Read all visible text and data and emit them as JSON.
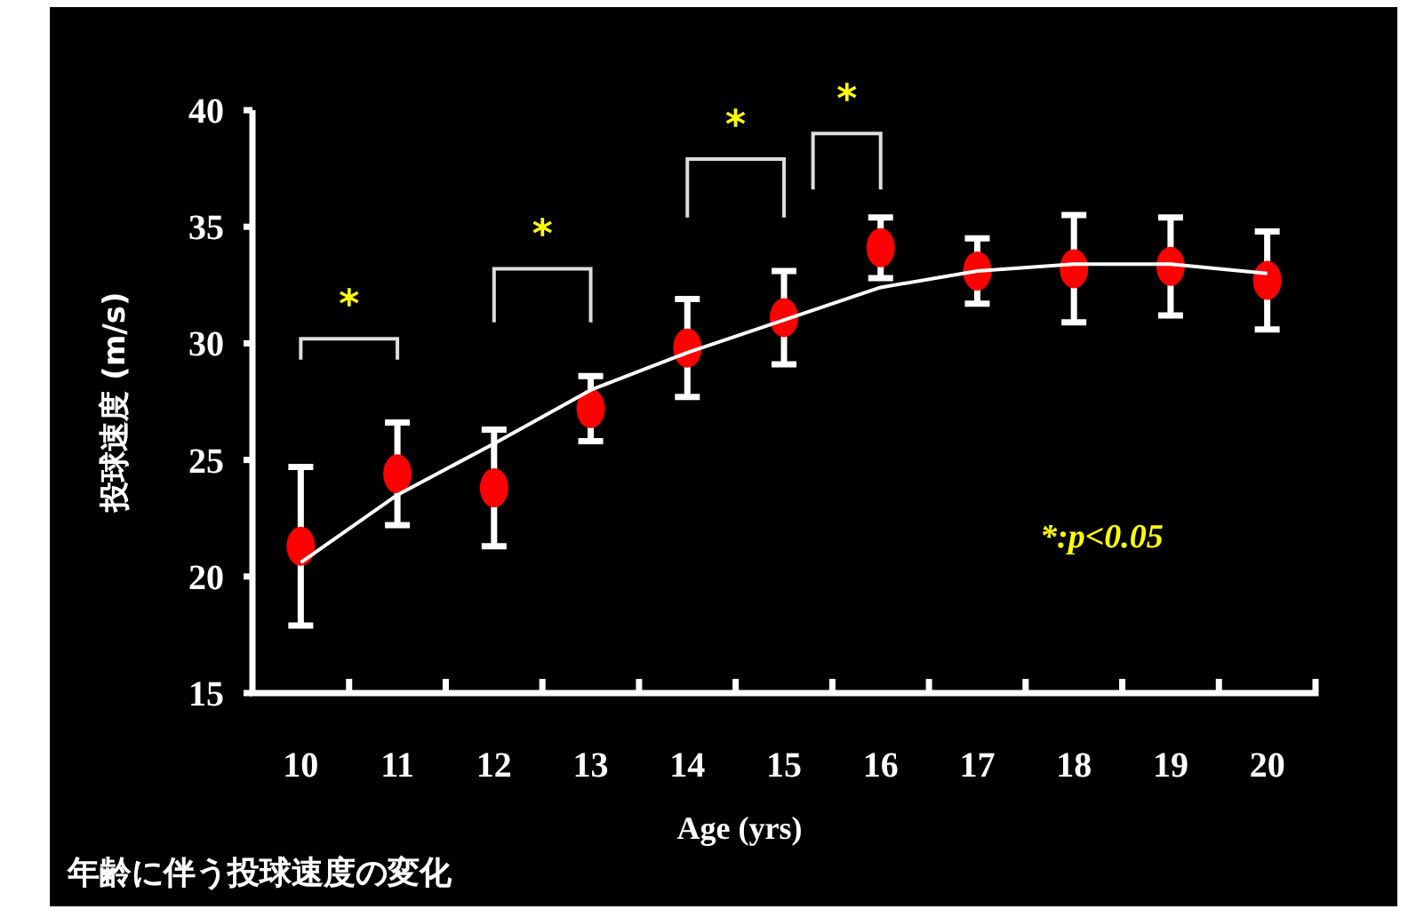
{
  "chart_data": {
    "type": "scatter",
    "title": "年齢に伴う投球速度の変化",
    "xlabel": "Age (yrs)",
    "ylabel": "投球速度 (m/s)",
    "categories": [
      "10",
      "11",
      "12",
      "13",
      "14",
      "15",
      "16",
      "17",
      "18",
      "19",
      "20"
    ],
    "ylim": [
      15,
      40
    ],
    "yticks": [
      15,
      20,
      25,
      30,
      35,
      40
    ],
    "series": [
      {
        "marker": "circle",
        "color": "#ff0000",
        "values": [
          21.3,
          24.4,
          23.8,
          27.2,
          29.8,
          31.1,
          34.1,
          33.1,
          33.2,
          33.3,
          32.7
        ],
        "errors": [
          3.4,
          2.2,
          2.5,
          1.4,
          2.1,
          2.0,
          1.3,
          1.4,
          2.3,
          2.1,
          2.1
        ]
      },
      {
        "type": "line",
        "color": "#ffffff",
        "line_style": "solid",
        "values": [
          20.6,
          23.5,
          25.7,
          28.0,
          29.6,
          31.0,
          32.4,
          33.1,
          33.4,
          33.4,
          33.0
        ]
      }
    ],
    "annotations": [
      "*",
      "*",
      "*",
      "*",
      "*:p<0.05"
    ]
  }
}
